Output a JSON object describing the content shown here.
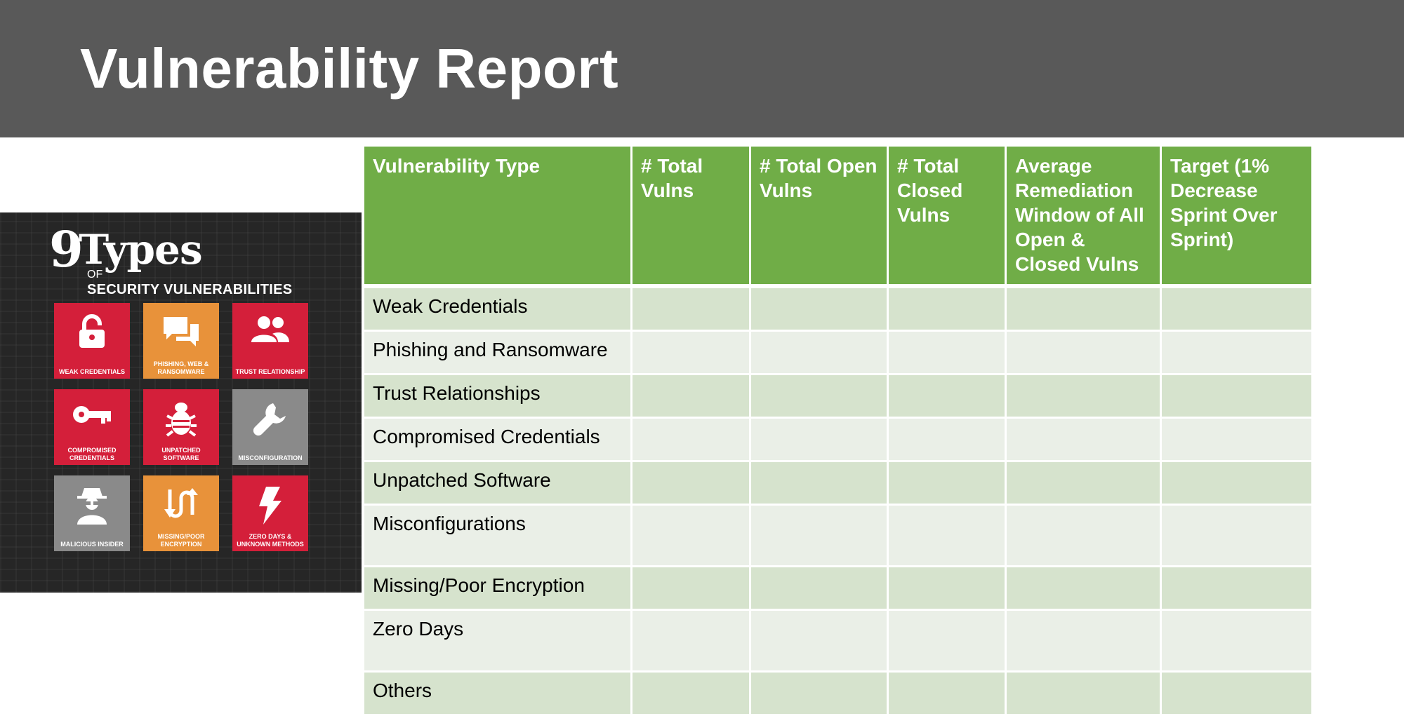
{
  "title": "Vulnerability Report",
  "infographic": {
    "number": "9",
    "word": "Types",
    "of": "OF",
    "subtitle": "SECURITY VULNERABILITIES",
    "tiles": [
      {
        "label": "WEAK CREDENTIALS",
        "icon": "lock-icon",
        "color": "#d41f3a"
      },
      {
        "label": "PHISHING, WEB & RANSOMWARE",
        "icon": "chat-bubbles-icon",
        "color": "#e8923a"
      },
      {
        "label": "TRUST RELATIONSHIP",
        "icon": "users-icon",
        "color": "#d41f3a"
      },
      {
        "label": "COMPROMISED CREDENTIALS",
        "icon": "key-icon",
        "color": "#d41f3a"
      },
      {
        "label": "UNPATCHED SOFTWARE",
        "icon": "bug-icon",
        "color": "#d41f3a"
      },
      {
        "label": "MISCONFIGURATION",
        "icon": "wrench-icon",
        "color": "#8a8a8a"
      },
      {
        "label": "MALICIOUS INSIDER",
        "icon": "spy-icon",
        "color": "#8a8a8a"
      },
      {
        "label": "MISSING/POOR ENCRYPTION",
        "icon": "arrows-icon",
        "color": "#e8923a"
      },
      {
        "label": "ZERO DAYS & UNKNOWN METHODS",
        "icon": "lightning-icon",
        "color": "#d41f3a"
      }
    ]
  },
  "table": {
    "headers": [
      "Vulnerability Type",
      "# Total Vulns",
      "# Total Open Vulns",
      "# Total Closed Vulns",
      "Average Remediation Window of All Open & Closed Vulns",
      "Target (1% Decrease Sprint Over Sprint)"
    ],
    "rows": [
      [
        "Weak Credentials",
        "",
        "",
        "",
        "",
        ""
      ],
      [
        "Phishing and Ransomware",
        "",
        "",
        "",
        "",
        ""
      ],
      [
        "Trust Relationships",
        "",
        "",
        "",
        "",
        ""
      ],
      [
        "Compromised Credentials",
        "",
        "",
        "",
        "",
        ""
      ],
      [
        "Unpatched Software",
        "",
        "",
        "",
        "",
        ""
      ],
      [
        "Misconfigurations",
        "",
        "",
        "",
        "",
        ""
      ],
      [
        "Missing/Poor Encryption",
        "",
        "",
        "",
        "",
        ""
      ],
      [
        "Zero Days",
        "",
        "",
        "",
        "",
        ""
      ],
      [
        "Others",
        "",
        "",
        "",
        "",
        ""
      ]
    ]
  },
  "colors": {
    "header_bg": "#595959",
    "table_header": "#70ad47",
    "row_dark": "#d6e3cd",
    "row_light": "#eaefe7"
  }
}
